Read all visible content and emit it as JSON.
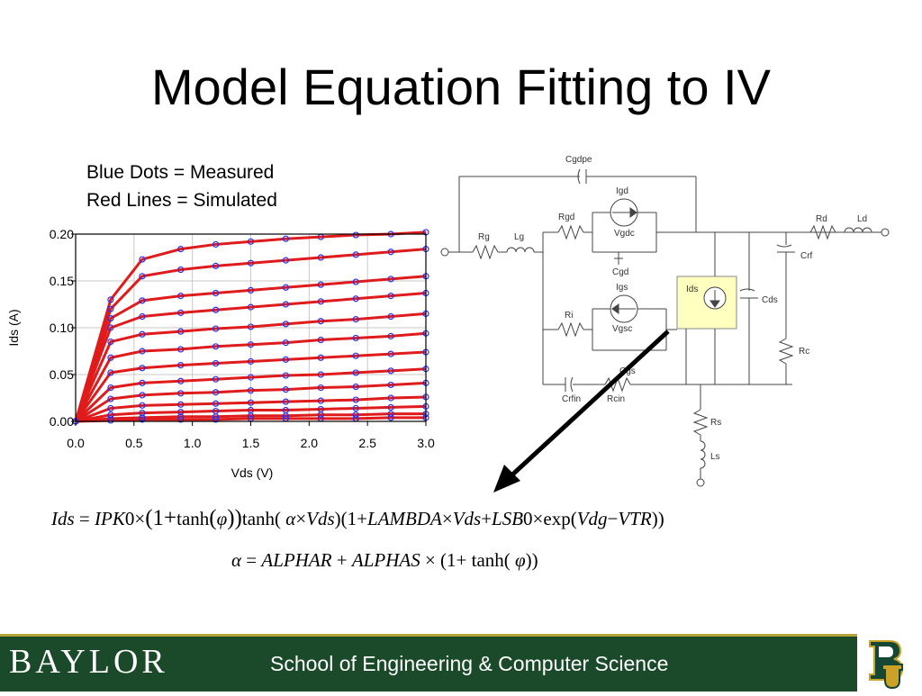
{
  "slide": {
    "title": "Model Equation Fitting to IV",
    "legend_lines": [
      "Blue Dots = Measured",
      "Red Lines = Simulated"
    ]
  },
  "chart_data": {
    "type": "line",
    "xlabel": "Vds (V)",
    "ylabel": "Ids (A)",
    "xlim": [
      0,
      3.0
    ],
    "ylim": [
      0,
      0.2
    ],
    "x_ticks": [
      "0.0",
      "0.5",
      "1.0",
      "1.5",
      "2.0",
      "2.5",
      "3.0"
    ],
    "y_ticks": [
      "0.00",
      "0.05",
      "0.10",
      "0.15",
      "0.20"
    ],
    "grid": true,
    "x": [
      0,
      0.3,
      0.57,
      0.9,
      1.2,
      1.5,
      1.8,
      2.1,
      2.4,
      2.7,
      3.0
    ],
    "series": [
      {
        "values": [
          0,
          0.13,
          0.173,
          0.184,
          0.189,
          0.192,
          0.195,
          0.197,
          0.199,
          0.2,
          0.202
        ]
      },
      {
        "values": [
          0,
          0.12,
          0.155,
          0.162,
          0.166,
          0.169,
          0.172,
          0.175,
          0.178,
          0.181,
          0.184
        ]
      },
      {
        "values": [
          0,
          0.11,
          0.129,
          0.134,
          0.137,
          0.14,
          0.143,
          0.146,
          0.149,
          0.152,
          0.155
        ]
      },
      {
        "values": [
          0,
          0.1,
          0.112,
          0.116,
          0.119,
          0.122,
          0.125,
          0.128,
          0.131,
          0.134,
          0.137
        ]
      },
      {
        "values": [
          0,
          0.085,
          0.093,
          0.096,
          0.099,
          0.101,
          0.104,
          0.107,
          0.109,
          0.112,
          0.115
        ]
      },
      {
        "values": [
          0,
          0.068,
          0.075,
          0.077,
          0.08,
          0.082,
          0.084,
          0.087,
          0.089,
          0.091,
          0.094
        ]
      },
      {
        "values": [
          0,
          0.052,
          0.057,
          0.06,
          0.062,
          0.064,
          0.066,
          0.068,
          0.07,
          0.072,
          0.074
        ]
      },
      {
        "values": [
          0,
          0.036,
          0.041,
          0.043,
          0.045,
          0.047,
          0.049,
          0.05,
          0.052,
          0.054,
          0.056
        ]
      },
      {
        "values": [
          0,
          0.024,
          0.028,
          0.03,
          0.031,
          0.033,
          0.034,
          0.036,
          0.037,
          0.039,
          0.041
        ]
      },
      {
        "values": [
          0,
          0.014,
          0.017,
          0.018,
          0.019,
          0.02,
          0.021,
          0.022,
          0.023,
          0.025,
          0.026
        ]
      },
      {
        "values": [
          0,
          0.007,
          0.009,
          0.01,
          0.011,
          0.012,
          0.012,
          0.013,
          0.014,
          0.015,
          0.016
        ]
      },
      {
        "values": [
          0,
          0.003,
          0.004,
          0.005,
          0.005,
          0.006,
          0.006,
          0.007,
          0.007,
          0.008,
          0.008
        ]
      },
      {
        "values": [
          0,
          0.001,
          0.002,
          0.002,
          0.002,
          0.003,
          0.003,
          0.003,
          0.003,
          0.004,
          0.004
        ]
      }
    ],
    "colors": {
      "simulated": "#e01b1b",
      "measured": "#2e2ee6"
    }
  },
  "circuit": {
    "labels": {
      "cgdpe": "Cgdpe",
      "igd": "Igd",
      "rgd": "Rgd",
      "vgdc": "Vgdc",
      "cgd": "Cgd",
      "rg": "Rg",
      "lg": "Lg",
      "igs": "Igs",
      "ri": "Ri",
      "vgsc": "Vgsc",
      "cgs": "Cgs",
      "crfin": "Crfin",
      "rcin": "Rcin",
      "ids": "Ids",
      "cds": "Cds",
      "rd": "Rd",
      "ld": "Ld",
      "crf": "Crf",
      "rc": "Rc",
      "rs": "Rs",
      "ls": "Ls"
    },
    "colors": {
      "ids_box": "#ffffc0"
    }
  },
  "equations": {
    "eq1": {
      "lhs": "Ids",
      "eq": "=",
      "ipk": "IPK",
      "zero": "0",
      "times": "×",
      "open": "(1+",
      "tanh": "tanh",
      "phi": "φ",
      "close": "))",
      "tanh2": "tanh(",
      "alpha": "α",
      "times2": "×",
      "vds": "Vds",
      "mid": ")(1+",
      "lambda": "LAMBDA",
      "times3": "×",
      "vds2": "Vds",
      "plus": "+",
      "lsb": "LSB",
      "zero2": "0",
      "times4": "×",
      "exp": "exp(",
      "vdg": "Vdg",
      "minus": "−",
      "vtr": "VTR",
      "end": "))"
    },
    "eq2": {
      "alpha": "α",
      "eq": "=",
      "alphar": "ALPHAR",
      "plus": "+",
      "alphas": "ALPHAS",
      "times": "×",
      "open": "(1+",
      "tanh": "tanh(",
      "phi": "φ",
      "close": "))"
    }
  },
  "footer": {
    "wordmark": "BAYLOR",
    "text": "School of Engineering & Computer Science",
    "colors": {
      "background": "#1a4a2a",
      "accent": "#b8a43a"
    }
  }
}
